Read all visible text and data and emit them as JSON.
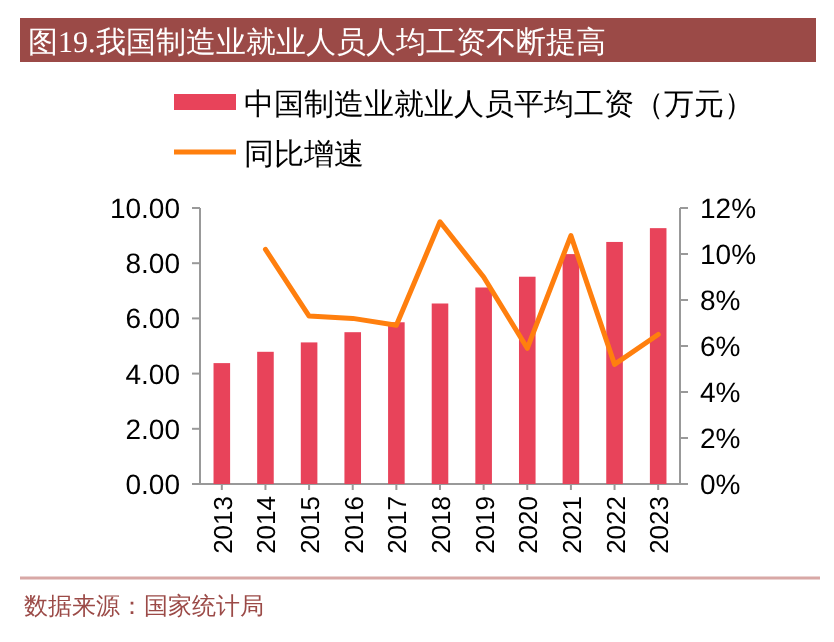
{
  "chart_data": {
    "type": "bar",
    "title": "图19.我国制造业就业人员人均工资不断提高",
    "categories": [
      "2013",
      "2014",
      "2015",
      "2016",
      "2017",
      "2018",
      "2019",
      "2020",
      "2021",
      "2022",
      "2023"
    ],
    "series": [
      {
        "name": "中国制造业就业人员平均工资（万元）",
        "color": "#e8435a",
        "values": [
          4.38,
          4.79,
          5.13,
          5.5,
          5.86,
          6.54,
          7.12,
          7.51,
          8.33,
          8.77,
          9.27
        ]
      },
      {
        "name": "同比增速",
        "type": "line",
        "axis": "y2",
        "color": "#ff7f0e",
        "values": [
          null,
          10.2,
          7.3,
          7.2,
          6.9,
          11.4,
          9.0,
          5.9,
          10.8,
          5.2,
          6.5
        ]
      }
    ],
    "ylim": [
      0,
      10
    ],
    "yticks": [
      {
        "value": 0,
        "label": "0.00"
      },
      {
        "value": 2,
        "label": "2.00"
      },
      {
        "value": 4,
        "label": "4.00"
      },
      {
        "value": 6,
        "label": "6.00"
      },
      {
        "value": 8,
        "label": "8.00"
      },
      {
        "value": 10,
        "label": "10.00"
      }
    ],
    "y2lim": [
      0,
      12
    ],
    "y2ticks": [
      {
        "value": 0,
        "label": "0%"
      },
      {
        "value": 2,
        "label": "2%"
      },
      {
        "value": 4,
        "label": "4%"
      },
      {
        "value": 6,
        "label": "6%"
      },
      {
        "value": 8,
        "label": "8%"
      },
      {
        "value": 10,
        "label": "10%"
      },
      {
        "value": 12,
        "label": "12%"
      }
    ],
    "legend": "top",
    "annotations": [
      "数据来源：国家统计局"
    ]
  }
}
